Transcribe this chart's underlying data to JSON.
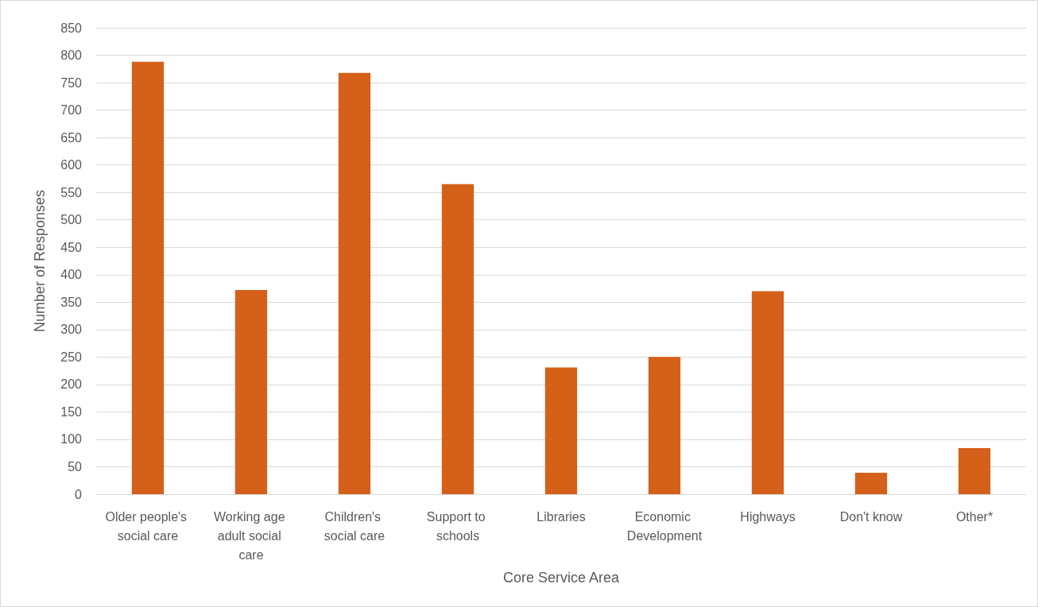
{
  "chart_data": {
    "type": "bar",
    "xlabel": "Core Service Area",
    "ylabel": "Number of Responses",
    "categories": [
      "Older people's social care",
      "Working age adult social care",
      "Children's social care",
      "Support to schools",
      "Libraries",
      "Economic Development",
      "Highways",
      "Don't know",
      "Other*"
    ],
    "values": [
      788,
      372,
      768,
      565,
      231,
      250,
      370,
      39,
      84
    ],
    "color": "#d5601a",
    "ylim": [
      0,
      850
    ],
    "yticks": [
      0,
      50,
      100,
      150,
      200,
      250,
      300,
      350,
      400,
      450,
      500,
      550,
      600,
      650,
      700,
      750,
      800,
      850
    ],
    "grid": "y"
  }
}
